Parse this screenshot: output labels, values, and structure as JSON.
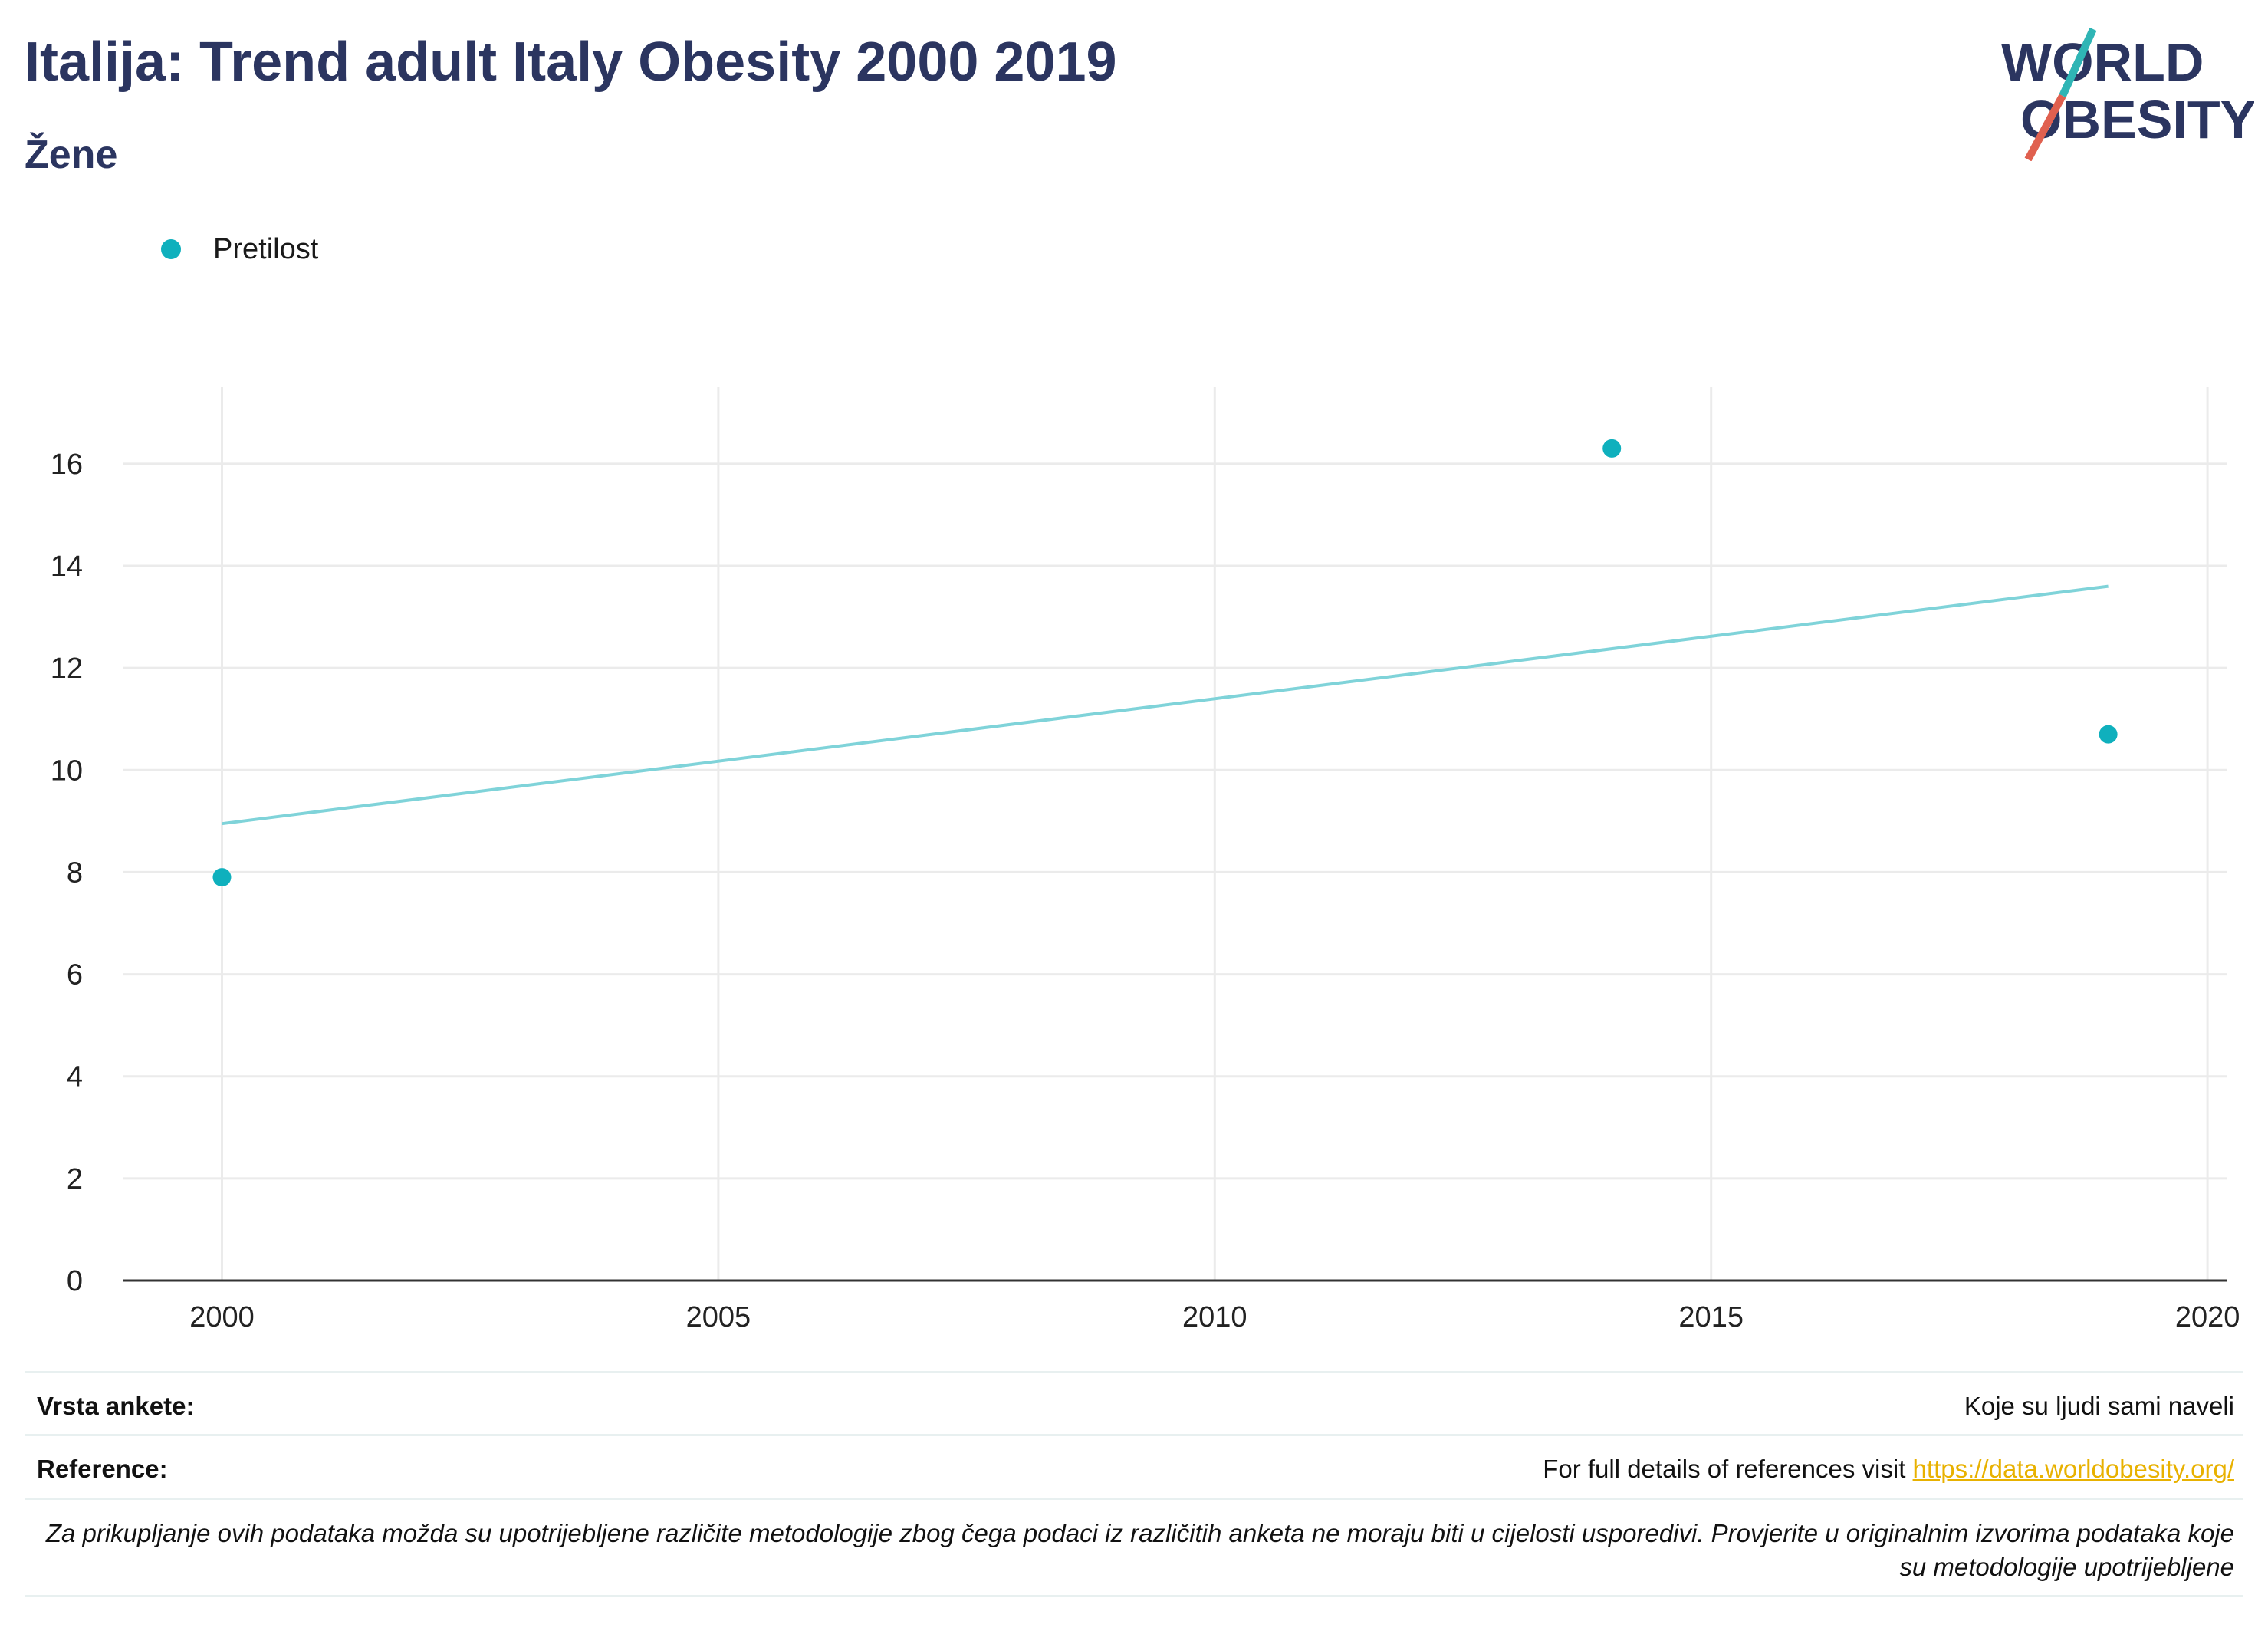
{
  "header": {
    "title": "Italija: Trend adult Italy Obesity 2000 2019",
    "subtitle": "Žene"
  },
  "logo": {
    "line1": "WORLD",
    "line2": "OBESITY",
    "accent_colors": [
      "#2fb5b5",
      "#e0604f"
    ],
    "text_color": "#2b3560"
  },
  "legend": {
    "items": [
      {
        "label": "Pretilost",
        "color": "#0fb0bd"
      }
    ]
  },
  "chart_data": {
    "type": "scatter",
    "title": "",
    "xlabel": "",
    "ylabel": "",
    "xlim": [
      1999,
      2020.2
    ],
    "ylim": [
      0,
      17.5
    ],
    "x_ticks": [
      2000,
      2005,
      2010,
      2015,
      2020
    ],
    "y_ticks": [
      0,
      2,
      4,
      6,
      8,
      10,
      12,
      14,
      16
    ],
    "grid": true,
    "legend_position": "top-left",
    "series": [
      {
        "name": "Pretilost",
        "color": "#0fb0bd",
        "points": [
          {
            "x": 2000,
            "y": 7.9
          },
          {
            "x": 2014,
            "y": 16.3
          },
          {
            "x": 2019,
            "y": 10.7
          }
        ]
      }
    ],
    "trendline": {
      "color": "#7fd3d9",
      "x": [
        2000,
        2019
      ],
      "y": [
        8.95,
        13.6
      ]
    }
  },
  "footer": {
    "survey_type_label": "Vrsta ankete:",
    "survey_type_value": "Koje su ljudi sami naveli",
    "references_label": "Reference:",
    "references_text": "For full details of references visit ",
    "references_link": "https://data.worldobesity.org/",
    "disclaimer": "Za prikupljanje ovih podataka možda su upotrijebljene različite metodologije zbog čega podaci iz različitih anketa ne moraju biti u cijelosti usporedivi. Provjerite u originalnim izvorima podataka koje su metodologije upotrijebljene"
  }
}
